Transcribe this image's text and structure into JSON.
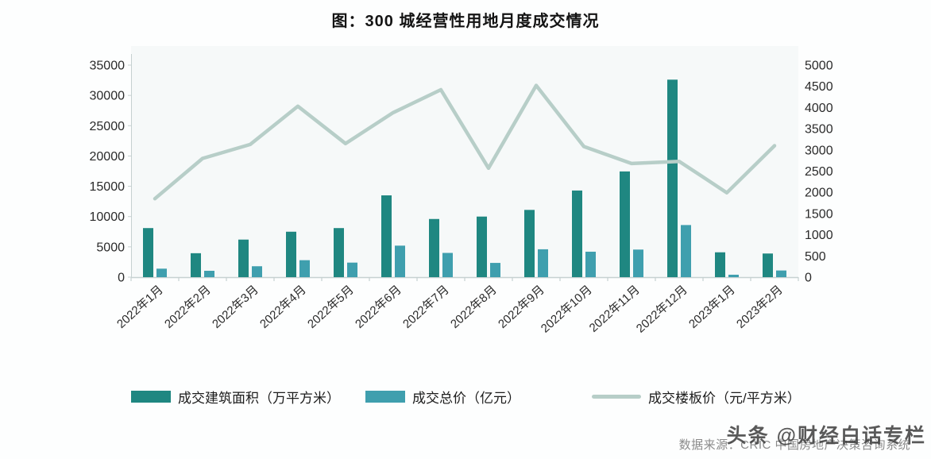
{
  "chart_data": {
    "type": "combo",
    "title": "图：300 城经营性用地月度成交情况",
    "categories": [
      "2022年1月",
      "2022年2月",
      "2022年3月",
      "2022年4月",
      "2022年5月",
      "2022年6月",
      "2022年7月",
      "2022年8月",
      "2022年9月",
      "2022年10月",
      "2022年11月",
      "2022年12月",
      "2023年1月",
      "2023年2月"
    ],
    "series": [
      {
        "name": "成交建筑面积（万平方米）",
        "type": "bar",
        "axis": "left",
        "color": "#1f8781",
        "values": [
          8100,
          3950,
          6200,
          7500,
          8100,
          13500,
          9600,
          10000,
          11100,
          14300,
          17450,
          32600,
          4100,
          3900
        ]
      },
      {
        "name": "成交总价（亿元）",
        "type": "bar",
        "axis": "left",
        "color": "#3f9fae",
        "values": [
          1400,
          1050,
          1800,
          2800,
          2400,
          5200,
          4000,
          2350,
          4600,
          4200,
          4550,
          8600,
          400,
          1100
        ]
      },
      {
        "name": "成交楼板价（元/平方米）",
        "type": "line",
        "axis": "right",
        "color": "#b7cec8",
        "values": [
          1850,
          2800,
          3130,
          4030,
          3150,
          3880,
          4420,
          2570,
          4520,
          3080,
          2680,
          2730,
          1990,
          3100
        ]
      }
    ],
    "left_axis": {
      "min": 0,
      "max": 35000,
      "step": 5000,
      "ticks": [
        0,
        5000,
        10000,
        15000,
        20000,
        25000,
        30000,
        35000
      ]
    },
    "right_axis": {
      "min": 0,
      "max": 5000,
      "step": 500,
      "ticks": [
        0,
        500,
        1000,
        1500,
        2000,
        2500,
        3000,
        3500,
        4000,
        4500,
        5000
      ]
    },
    "grid": false,
    "legend_position": "bottom"
  },
  "footer": {
    "source": "数据来源：CRIC 中国房地产决策咨询系统",
    "watermark": "头条 @财经白话专栏"
  },
  "style_colors": {
    "axis_line": "#c6d1d1",
    "axis_text": "#2a2a2a",
    "plot_bg": "#f6f9f9"
  }
}
